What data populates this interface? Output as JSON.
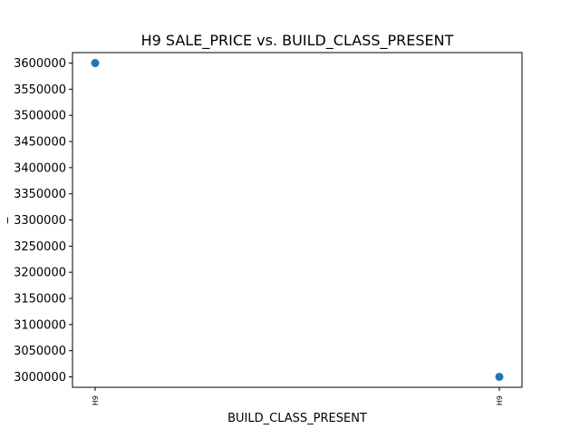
{
  "chart_data": {
    "type": "scatter",
    "title": "H9 SALE_PRICE vs. BUILD_CLASS_PRESENT",
    "xlabel": "BUILD_CLASS_PRESENT",
    "ylabel": "_",
    "x_categories": [
      "H9",
      "H9"
    ],
    "points": [
      {
        "x_index": 0,
        "x": "H9",
        "y": 3600000
      },
      {
        "x_index": 1,
        "x": "H9",
        "y": 3000000
      }
    ],
    "yticks": [
      3000000,
      3050000,
      3100000,
      3150000,
      3200000,
      3250000,
      3300000,
      3350000,
      3400000,
      3450000,
      3500000,
      3550000,
      3600000
    ],
    "ylim": [
      2980000,
      3620000
    ],
    "grid": false,
    "legend": "none",
    "marker_color": "#1f77b4"
  }
}
